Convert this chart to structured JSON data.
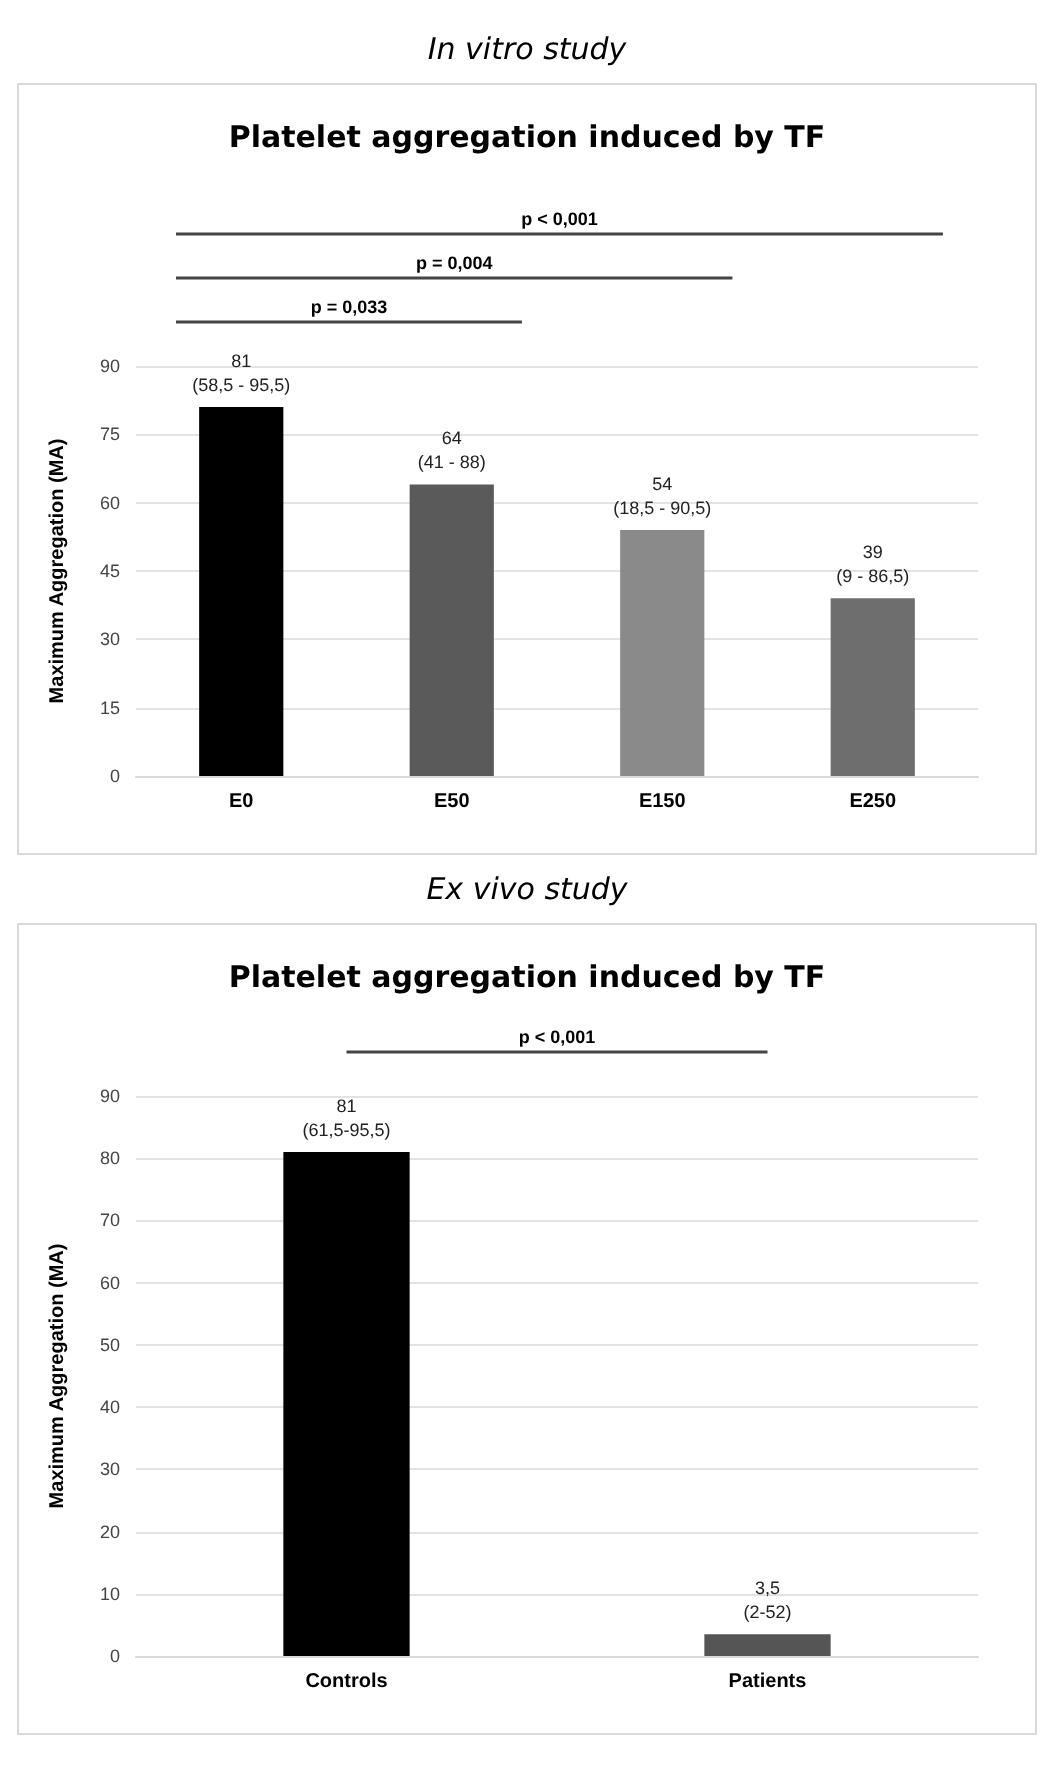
{
  "chart_data": [
    {
      "type": "bar",
      "title": "In vitro study",
      "subtitle": "Platelet aggregation induced by TF",
      "ylabel": "Maximum Aggregation (MA)",
      "categories": [
        "E0",
        "E50",
        "E150",
        "E250"
      ],
      "values": [
        81,
        64,
        54,
        39
      ],
      "colors": [
        "#000000",
        "#5a5a5a",
        "#8a8a8a",
        "#6e6e6e"
      ],
      "value_labels": [
        "81\n(58,5 - 95,5)",
        "64\n(41 - 88)",
        "54\n(18,5 - 90,5)",
        "39\n(9 - 86,5)"
      ],
      "ylim": [
        0,
        90
      ],
      "yticks": [
        0,
        15,
        30,
        45,
        60,
        75,
        90
      ],
      "grid": "y",
      "annotations": [
        "p = 0,033",
        "p = 0,004",
        "p < 0,001"
      ]
    },
    {
      "type": "bar",
      "title": "Ex vivo study",
      "subtitle": "Platelet aggregation induced by TF",
      "ylabel": "Maximum Aggregation (MA)",
      "categories": [
        "Controls",
        "Patients"
      ],
      "values": [
        81,
        3.5
      ],
      "colors": [
        "#000000",
        "#555555"
      ],
      "value_labels": [
        "81\n(61,5-95,5)",
        "3,5\n(2-52)"
      ],
      "ylim": [
        0,
        90
      ],
      "yticks": [
        0,
        10,
        20,
        30,
        40,
        50,
        60,
        70,
        80,
        90
      ],
      "grid": "y",
      "annotations": [
        "p < 0,001"
      ]
    }
  ]
}
